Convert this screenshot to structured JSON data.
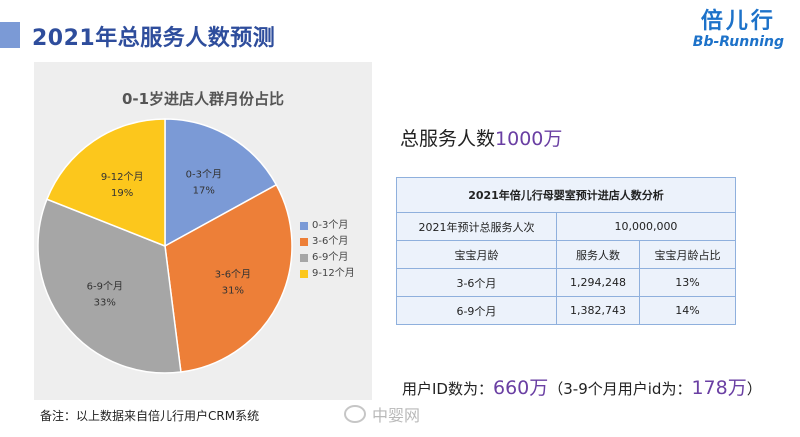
{
  "header": {
    "title": "2021年总服务人数预测"
  },
  "logo": {
    "cn": "倍儿行",
    "en": "Bb-Running"
  },
  "chart_data": {
    "type": "pie",
    "title": "0-1岁进店人群月份占比",
    "categories": [
      "0-3个月",
      "3-6个月",
      "6-9个月",
      "9-12个月"
    ],
    "values": [
      17,
      31,
      33,
      19
    ],
    "value_labels": [
      "17%",
      "31%",
      "33%",
      "19%"
    ],
    "colors": [
      "#7b9ad6",
      "#ed7f38",
      "#a6a6a6",
      "#fcc71c"
    ],
    "legend_position": "right"
  },
  "summary": {
    "prefix": "总服务人数",
    "value": "1000万"
  },
  "table": {
    "title": "2021年倍儿行母婴室预计进店人数分析",
    "total_label": "2021年预计总服务人次",
    "total_value": "10,000,000",
    "headers": [
      "宝宝月龄",
      "服务人数",
      "宝宝月龄占比"
    ],
    "rows": [
      [
        "3-6个月",
        "1,294,248",
        "13%"
      ],
      [
        "6-9个月",
        "1,382,743",
        "14%"
      ]
    ]
  },
  "user_ids": {
    "prefix": "用户ID数为：",
    "value": "660万",
    "paren_prefix": "（3-9个月用户id为：",
    "paren_value": "178万",
    "paren_suffix": "）"
  },
  "note": "备注：以上数据来自倍儿行用户CRM系统",
  "watermark": "中婴网"
}
